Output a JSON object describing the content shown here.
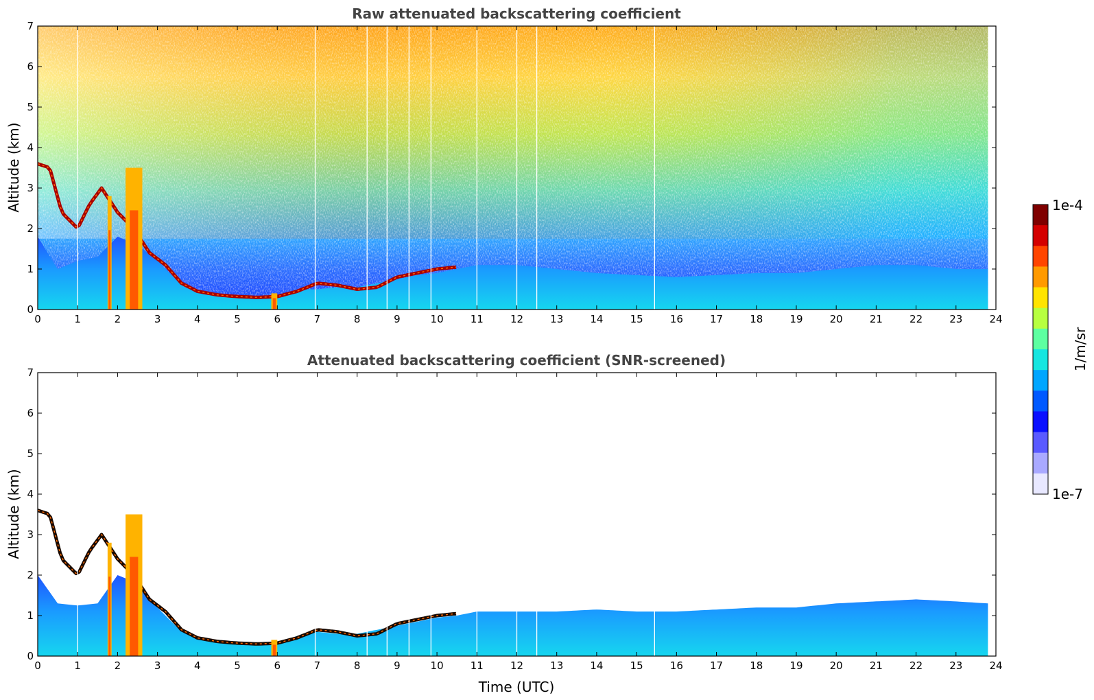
{
  "chart_data": [
    {
      "type": "heatmap",
      "title": "Raw attenuated backscattering coefficient",
      "xlabel": "",
      "ylabel": "Altitude (km)",
      "xlim": [
        0,
        24
      ],
      "ylim": [
        0,
        7
      ],
      "x_ticks": [
        "0",
        "1",
        "2",
        "3",
        "4",
        "5",
        "6",
        "7",
        "8",
        "9",
        "10",
        "11",
        "12",
        "13",
        "14",
        "15",
        "16",
        "17",
        "18",
        "19",
        "20",
        "21",
        "22",
        "23",
        "24"
      ],
      "y_ticks": [
        "0",
        "1",
        "2",
        "3",
        "4",
        "5",
        "6",
        "7"
      ],
      "data_end_time": 23.8,
      "screened": false,
      "boundary_layer_top_km": {
        "time": [
          0,
          0.5,
          1,
          1.5,
          2,
          2.5,
          3,
          3.5,
          4,
          4.5,
          5,
          5.5,
          6,
          6.5,
          7,
          7.5,
          8,
          8.5,
          9,
          9.5,
          10,
          10.5,
          11,
          12,
          13,
          14,
          15,
          16,
          17,
          18,
          19,
          20,
          21,
          22,
          23,
          23.8
        ],
        "height": [
          1.8,
          1.0,
          1.2,
          1.3,
          1.8,
          1.6,
          1.2,
          0.7,
          0.45,
          0.35,
          0.32,
          0.3,
          0.32,
          0.5,
          0.5,
          0.55,
          0.55,
          0.65,
          0.75,
          0.85,
          0.9,
          1.0,
          1.1,
          1.1,
          1.0,
          0.9,
          0.85,
          0.8,
          0.85,
          0.9,
          0.9,
          1.0,
          1.1,
          1.1,
          1.0,
          1.0
        ]
      },
      "cloud_layer_km": {
        "time": [
          0,
          0.3,
          0.6,
          1.0,
          1.3,
          1.6,
          2.0,
          2.4,
          2.8,
          3.2,
          3.6,
          4.0,
          4.5,
          5.0,
          5.5,
          6.0,
          6.5,
          7.0,
          7.5,
          8.0,
          8.5,
          9.0,
          9.5,
          10.0,
          10.5
        ],
        "height": [
          3.6,
          3.5,
          2.4,
          2.0,
          2.6,
          3.0,
          2.4,
          2.0,
          1.4,
          1.1,
          0.65,
          0.45,
          0.36,
          0.32,
          0.3,
          0.32,
          0.45,
          0.65,
          0.6,
          0.5,
          0.55,
          0.8,
          0.9,
          1.0,
          1.05
        ]
      },
      "precipitation_columns": [
        {
          "t0": 1.75,
          "t1": 1.85,
          "top_km": 2.8
        },
        {
          "t0": 2.2,
          "t1": 2.62,
          "top_km": 3.5
        },
        {
          "t0": 5.85,
          "t1": 6.0,
          "top_km": 0.4
        }
      ],
      "gaps_hours": [
        1.0,
        6.95,
        8.25,
        8.75,
        9.3,
        9.85,
        11.0,
        12.0,
        12.5,
        15.45
      ]
    },
    {
      "type": "heatmap",
      "title": "Attenuated backscattering coefficient (SNR-screened)",
      "xlabel": "Time (UTC)",
      "ylabel": "Altitude (km)",
      "xlim": [
        0,
        24
      ],
      "ylim": [
        0,
        7
      ],
      "x_ticks": [
        "0",
        "1",
        "2",
        "3",
        "4",
        "5",
        "6",
        "7",
        "8",
        "9",
        "10",
        "11",
        "12",
        "13",
        "14",
        "15",
        "16",
        "17",
        "18",
        "19",
        "20",
        "21",
        "22",
        "23",
        "24"
      ],
      "y_ticks": [
        "0",
        "1",
        "2",
        "3",
        "4",
        "5",
        "6",
        "7"
      ],
      "data_end_time": 23.8,
      "screened": true,
      "valid_top_km": {
        "time": [
          0,
          0.5,
          1,
          1.5,
          2,
          2.5,
          3,
          3.5,
          4,
          4.5,
          5,
          5.5,
          6,
          6.5,
          7,
          7.5,
          8,
          8.5,
          9,
          9.5,
          10,
          10.5,
          11,
          12,
          13,
          14,
          15,
          16,
          17,
          18,
          19,
          20,
          21,
          22,
          23,
          23.8
        ],
        "height": [
          2.0,
          1.3,
          1.25,
          1.3,
          2.0,
          1.8,
          1.2,
          0.7,
          0.45,
          0.35,
          0.32,
          0.3,
          0.32,
          0.5,
          0.6,
          0.55,
          0.55,
          0.65,
          0.75,
          0.85,
          0.95,
          1.0,
          1.1,
          1.1,
          1.1,
          1.15,
          1.1,
          1.1,
          1.15,
          1.2,
          1.2,
          1.3,
          1.35,
          1.4,
          1.35,
          1.3
        ]
      }
    }
  ],
  "colorbar": {
    "max_label": "1e-4",
    "min_label": "1e-7",
    "unit_label": "1/m/sr",
    "colors": [
      "#7f0000",
      "#d40000",
      "#ff4500",
      "#ff9a00",
      "#ffe400",
      "#b7ff40",
      "#5dffa1",
      "#16e6e0",
      "#00a6ff",
      "#0059ff",
      "#0a10ff",
      "#5a5aff",
      "#a9a9ff",
      "#e8e8ff"
    ]
  }
}
